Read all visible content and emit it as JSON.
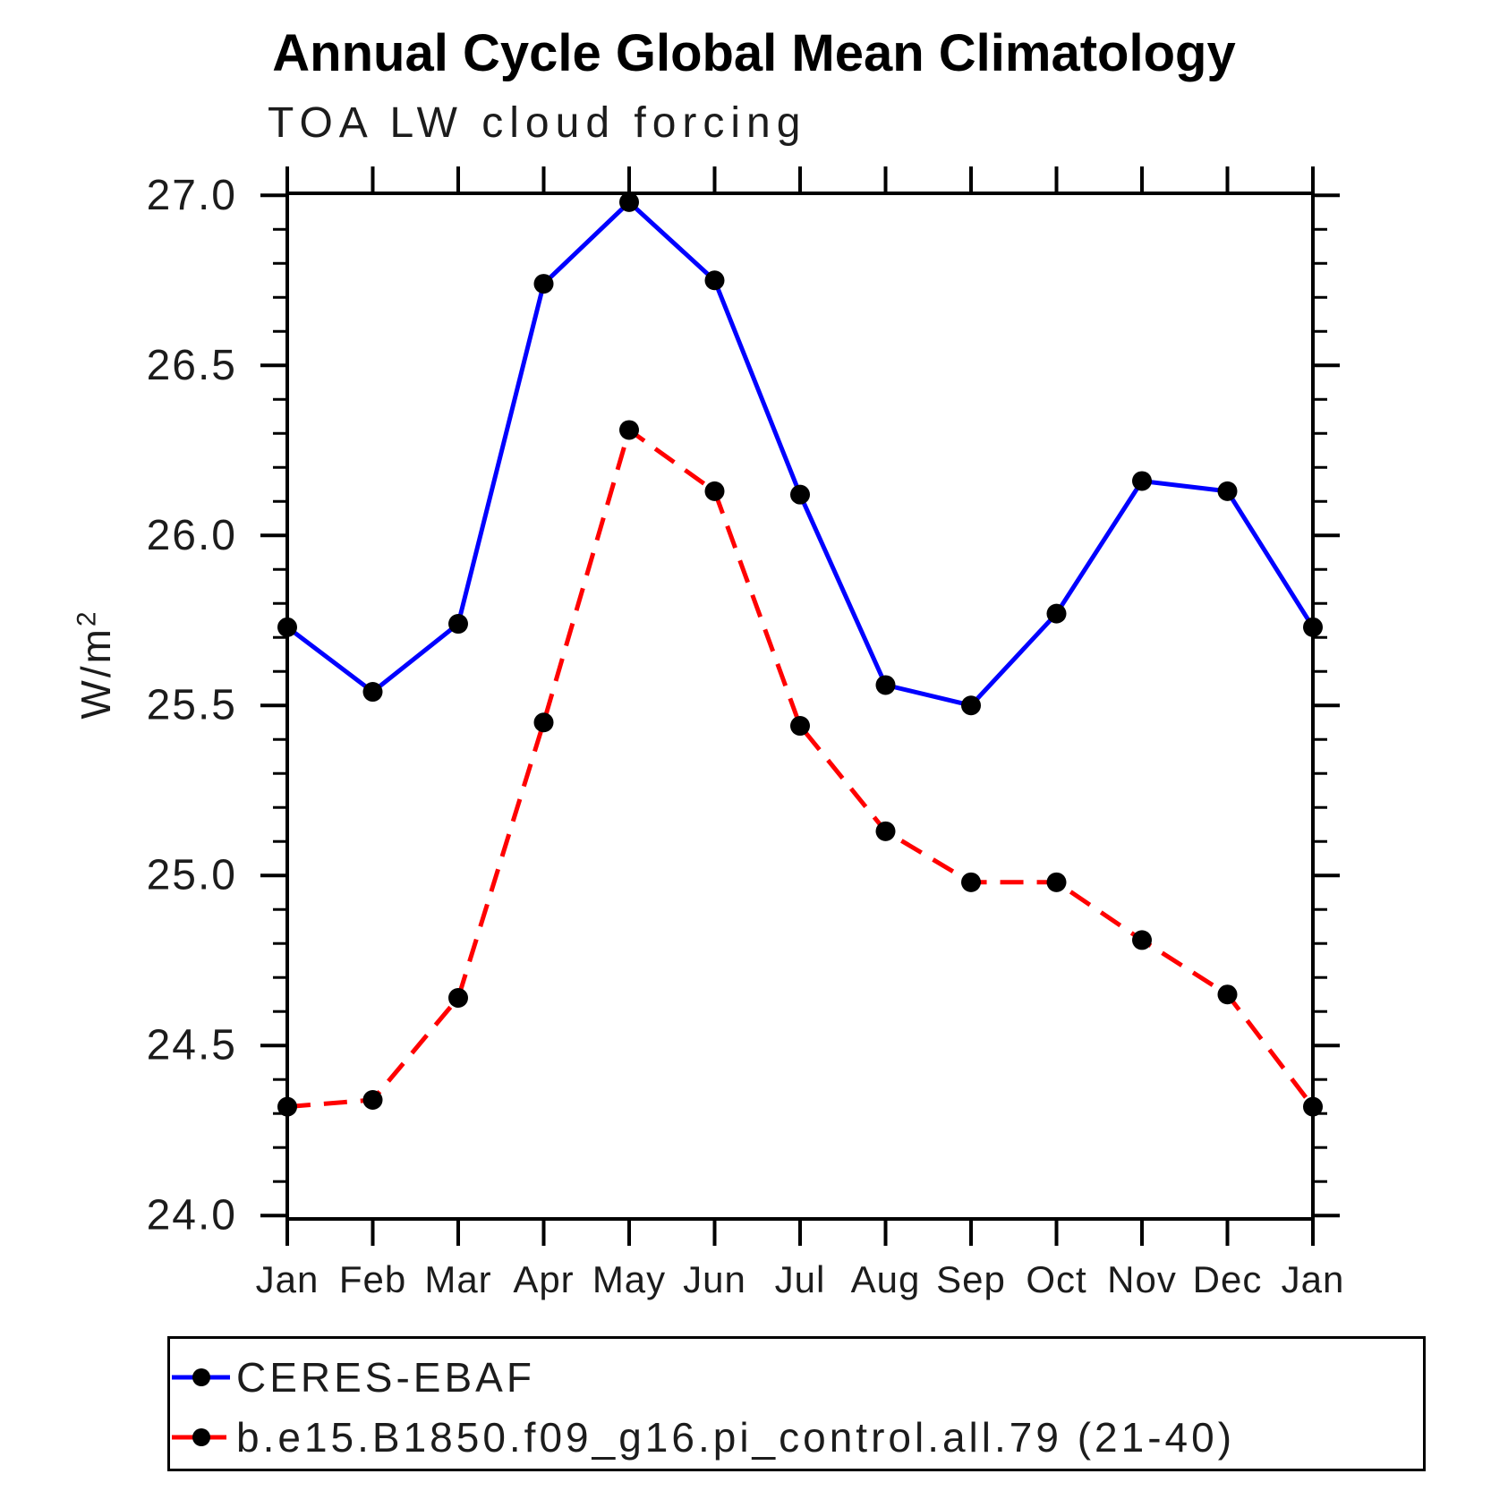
{
  "title": "Annual Cycle Global Mean Climatology",
  "subtitle": "TOA LW cloud forcing",
  "yaxis": {
    "label_base": "W/m",
    "label_sup": "2",
    "tick_labels": [
      "24.0",
      "24.5",
      "25.0",
      "25.5",
      "26.0",
      "26.5",
      "27.0"
    ]
  },
  "chart_data": {
    "type": "line",
    "title": "Annual Cycle Global Mean Climatology",
    "subtitle": "TOA LW cloud forcing",
    "ylabel": "W/m2",
    "xlabel": "",
    "x_categories": [
      "Jan",
      "Feb",
      "Mar",
      "Apr",
      "May",
      "Jun",
      "Jul",
      "Aug",
      "Sep",
      "Oct",
      "Nov",
      "Dec",
      "Jan"
    ],
    "ylim": [
      24.0,
      27.0
    ],
    "y_major_step": 0.5,
    "y_minor_step": 0.1,
    "grid": false,
    "legend_position": "bottom-left-box",
    "axis_color": "#000000",
    "marker": "filled-circle",
    "marker_color": "#000000",
    "series": [
      {
        "name": "CERES-EBAF",
        "color": "#0000ff",
        "line_style": "solid",
        "values": [
          25.73,
          25.54,
          25.74,
          26.74,
          26.98,
          26.75,
          26.12,
          25.56,
          25.5,
          25.77,
          26.16,
          26.13,
          25.73
        ]
      },
      {
        "name": "b.e15.B1850.f09_g16.pi_control.all.79 (21-40)",
        "color": "#ff0000",
        "line_style": "dashed",
        "values": [
          24.32,
          24.34,
          24.64,
          25.45,
          26.31,
          26.13,
          25.44,
          25.13,
          24.98,
          24.98,
          24.81,
          24.65,
          24.32
        ]
      }
    ]
  }
}
